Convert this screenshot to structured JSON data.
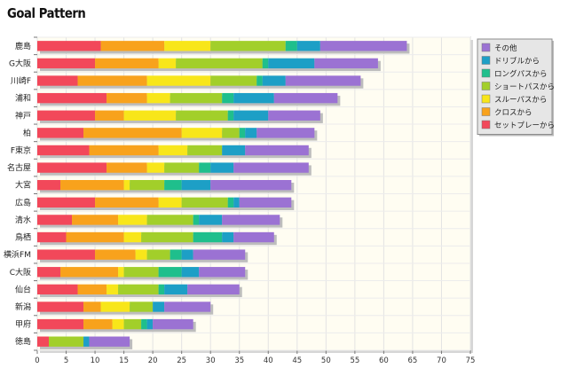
{
  "title": "Goal Pattern",
  "chart_data": {
    "type": "bar",
    "orientation": "horizontal",
    "stacked": true,
    "categories": [
      "鹿島",
      "G大阪",
      "川崎F",
      "浦和",
      "神戸",
      "柏",
      "F東京",
      "名古屋",
      "大宮",
      "広島",
      "清水",
      "鳥栖",
      "横浜FM",
      "C大阪",
      "仙台",
      "新潟",
      "甲府",
      "徳島"
    ],
    "series": [
      {
        "name": "セットプレーから",
        "color": "#f2485a",
        "values": [
          11,
          10,
          7,
          12,
          10,
          8,
          9,
          12,
          4,
          10,
          6,
          5,
          10,
          4,
          7,
          8,
          8,
          2
        ]
      },
      {
        "name": "クロスから",
        "color": "#f8a21c",
        "values": [
          11,
          11,
          12,
          7,
          5,
          17,
          12,
          7,
          11,
          11,
          8,
          10,
          7,
          10,
          5,
          3,
          5,
          0
        ]
      },
      {
        "name": "スルーパスから",
        "color": "#f8e61a",
        "values": [
          8,
          3,
          11,
          4,
          9,
          7,
          5,
          3,
          1,
          4,
          5,
          3,
          2,
          1,
          2,
          5,
          2,
          0
        ]
      },
      {
        "name": "ショートパスから",
        "color": "#a2cf2a",
        "values": [
          13,
          15,
          8,
          9,
          9,
          3,
          6,
          6,
          6,
          8,
          8,
          9,
          4,
          6,
          7,
          4,
          3,
          6
        ]
      },
      {
        "name": "ロングパスから",
        "color": "#1fbf8c",
        "values": [
          2,
          1,
          1,
          2,
          1,
          1,
          0,
          2,
          3,
          1,
          1,
          5,
          2,
          4,
          1,
          0,
          1,
          0
        ]
      },
      {
        "name": "ドリブルから",
        "color": "#1d9fc6",
        "values": [
          4,
          8,
          4,
          7,
          6,
          2,
          4,
          4,
          5,
          1,
          4,
          2,
          2,
          3,
          4,
          2,
          1,
          1
        ]
      },
      {
        "name": "その他",
        "color": "#9b72d3",
        "values": [
          15,
          11,
          13,
          11,
          9,
          10,
          11,
          13,
          14,
          9,
          10,
          7,
          9,
          8,
          9,
          8,
          7,
          7
        ]
      }
    ],
    "xlim": [
      0,
      75
    ],
    "xticks": [
      0,
      5,
      10,
      15,
      20,
      25,
      30,
      35,
      40,
      45,
      50,
      55,
      60,
      65,
      70,
      75
    ],
    "legend_position": "right",
    "grid": true
  }
}
